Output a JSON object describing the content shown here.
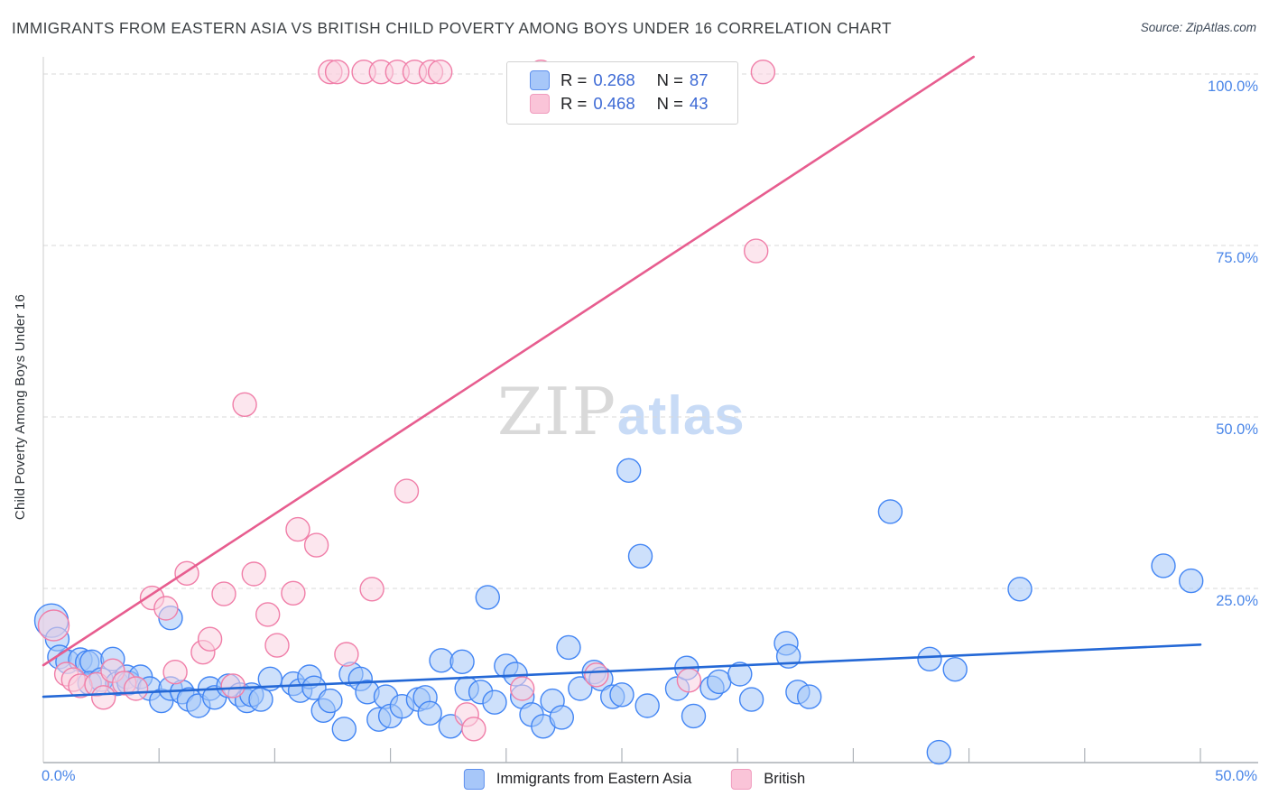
{
  "header": {
    "title": "IMMIGRANTS FROM EASTERN ASIA VS BRITISH CHILD POVERTY AMONG BOYS UNDER 16 CORRELATION CHART",
    "source": "Source: ZipAtlas.com"
  },
  "watermark": {
    "zip": "ZIP",
    "atlas": "atlas"
  },
  "axes": {
    "y_title": "Child Poverty Among Boys Under 16",
    "x_min_label": "0.0%",
    "x_max_label": "50.0%",
    "y_tick_labels": [
      "100.0%",
      "75.0%",
      "50.0%",
      "25.0%"
    ],
    "y_tick_values": [
      100,
      75,
      50,
      25
    ],
    "x_tick_values": [
      5,
      10,
      15,
      20,
      25,
      30,
      35,
      40,
      45,
      50
    ]
  },
  "legend": {
    "series": [
      {
        "r_prefix": "R =",
        "r_value": "0.268",
        "n_prefix": "N =",
        "n_value": "87"
      },
      {
        "r_prefix": "R =",
        "r_value": "0.468",
        "n_prefix": "N =",
        "n_value": "43"
      }
    ]
  },
  "bottom_legend": {
    "items": [
      {
        "label": "Immigrants from Eastern Asia"
      },
      {
        "label": "British"
      }
    ]
  },
  "colors": {
    "blue_stroke": "#4285f4",
    "blue_fill": "rgba(164,199,247,0.55)",
    "pink_stroke": "#f07ea8",
    "pink_fill": "rgba(250,209,224,0.55)",
    "blue_trend": "#2468d6",
    "pink_trend": "#e75d8f",
    "grid": "#d9d9d9",
    "x_axis": "#9aa0a6",
    "y_axis": "#cccccc",
    "tick": "#aeb3b9",
    "label_blue": "#4a86e8"
  },
  "chart_data": {
    "type": "scatter",
    "xlabel": "Immigrants from Eastern Asia (%)",
    "ylabel": "Child Poverty Among Boys Under 16 (%)",
    "xlim": [
      0,
      50
    ],
    "ylim": [
      0,
      105
    ],
    "grid": "horizontal-dashed",
    "legend_position": "top-center",
    "series": [
      {
        "name": "Immigrants from Eastern Asia",
        "R": 0.268,
        "N": 87,
        "points": [
          [
            0.35,
            20.3,
            18.5
          ],
          [
            0.6,
            17.6
          ],
          [
            0.7,
            15.0
          ],
          [
            1.05,
            14.3
          ],
          [
            1.6,
            14.6
          ],
          [
            1.9,
            14.2
          ],
          [
            2.1,
            14.3
          ],
          [
            2.0,
            11.2
          ],
          [
            2.5,
            11.7
          ],
          [
            3.0,
            14.7
          ],
          [
            3.2,
            11.1
          ],
          [
            3.6,
            12.1
          ],
          [
            3.7,
            11.2
          ],
          [
            4.2,
            12.1
          ],
          [
            4.6,
            10.4
          ],
          [
            5.1,
            8.6
          ],
          [
            5.5,
            10.4
          ],
          [
            5.5,
            20.7
          ],
          [
            6.0,
            9.9
          ],
          [
            6.3,
            8.8
          ],
          [
            6.7,
            7.9
          ],
          [
            7.2,
            10.4
          ],
          [
            7.4,
            9.1
          ],
          [
            8.0,
            10.8
          ],
          [
            8.5,
            9.5
          ],
          [
            8.8,
            8.6
          ],
          [
            9.0,
            9.5
          ],
          [
            9.4,
            8.8
          ],
          [
            9.8,
            11.8
          ],
          [
            10.8,
            11.1
          ],
          [
            11.1,
            10.1
          ],
          [
            11.5,
            12.1
          ],
          [
            11.7,
            10.5
          ],
          [
            12.1,
            7.2
          ],
          [
            12.4,
            8.6
          ],
          [
            13.0,
            4.5
          ],
          [
            13.3,
            12.5
          ],
          [
            13.7,
            11.8
          ],
          [
            14.0,
            9.9
          ],
          [
            14.5,
            5.9
          ],
          [
            14.8,
            9.2
          ],
          [
            15.0,
            6.4
          ],
          [
            15.5,
            7.8
          ],
          [
            16.2,
            8.8
          ],
          [
            16.5,
            9.1
          ],
          [
            16.7,
            6.8
          ],
          [
            17.2,
            14.5
          ],
          [
            17.6,
            4.9
          ],
          [
            18.1,
            14.3
          ],
          [
            18.3,
            10.4
          ],
          [
            18.9,
            9.9
          ],
          [
            19.2,
            23.7
          ],
          [
            19.5,
            8.4
          ],
          [
            20.0,
            13.7
          ],
          [
            20.4,
            12.5
          ],
          [
            20.7,
            9.2
          ],
          [
            21.1,
            6.6
          ],
          [
            21.6,
            4.9
          ],
          [
            22.0,
            8.6
          ],
          [
            22.4,
            6.2
          ],
          [
            22.7,
            16.4
          ],
          [
            23.2,
            10.4
          ],
          [
            23.8,
            12.8
          ],
          [
            24.1,
            11.8
          ],
          [
            24.6,
            9.2
          ],
          [
            25.0,
            9.5
          ],
          [
            25.3,
            42.2
          ],
          [
            25.8,
            29.7
          ],
          [
            26.1,
            7.9
          ],
          [
            27.4,
            10.4
          ],
          [
            27.8,
            13.4
          ],
          [
            28.1,
            6.4
          ],
          [
            28.9,
            10.5
          ],
          [
            29.2,
            11.4
          ],
          [
            30.1,
            12.5
          ],
          [
            30.6,
            8.8
          ],
          [
            32.1,
            17.0
          ],
          [
            32.2,
            15.1
          ],
          [
            32.6,
            9.9
          ],
          [
            33.1,
            9.2
          ],
          [
            36.6,
            36.2
          ],
          [
            38.3,
            14.7
          ],
          [
            38.7,
            1.1
          ],
          [
            39.4,
            13.2
          ],
          [
            42.2,
            24.9
          ],
          [
            48.4,
            28.3
          ],
          [
            49.6,
            26.1
          ]
        ]
      },
      {
        "name": "British",
        "R": 0.468,
        "N": 43,
        "points": [
          [
            0.45,
            19.6,
            17
          ],
          [
            1.0,
            12.5
          ],
          [
            1.3,
            11.7
          ],
          [
            1.6,
            10.8
          ],
          [
            2.3,
            11.0
          ],
          [
            2.6,
            9.1
          ],
          [
            3.0,
            13.0
          ],
          [
            3.5,
            11.2
          ],
          [
            4.0,
            10.4
          ],
          [
            4.7,
            23.6
          ],
          [
            5.3,
            22.1
          ],
          [
            5.7,
            12.8
          ],
          [
            6.2,
            27.2
          ],
          [
            6.9,
            15.7
          ],
          [
            7.2,
            17.6
          ],
          [
            7.8,
            24.2
          ],
          [
            8.2,
            10.8
          ],
          [
            8.7,
            51.8
          ],
          [
            9.1,
            27.1
          ],
          [
            9.7,
            21.2
          ],
          [
            10.1,
            16.7
          ],
          [
            10.8,
            24.3
          ],
          [
            11.0,
            33.6
          ],
          [
            11.8,
            31.3
          ],
          [
            12.4,
            100.3
          ],
          [
            12.7,
            100.3
          ],
          [
            13.1,
            15.4
          ],
          [
            13.85,
            100.3
          ],
          [
            14.2,
            24.9
          ],
          [
            14.6,
            100.3
          ],
          [
            15.3,
            100.3
          ],
          [
            15.7,
            39.2
          ],
          [
            16.05,
            100.3
          ],
          [
            16.75,
            100.3
          ],
          [
            17.15,
            100.3
          ],
          [
            18.3,
            6.6
          ],
          [
            18.6,
            4.5
          ],
          [
            20.7,
            10.4
          ],
          [
            21.5,
            100.3
          ],
          [
            23.9,
            12.4
          ],
          [
            27.9,
            11.6
          ],
          [
            30.8,
            74.2
          ],
          [
            31.1,
            100.3
          ]
        ]
      }
    ],
    "trend_lines": [
      {
        "series": "Immigrants from Eastern Asia",
        "x1": 0,
        "y1": 9.2,
        "x2": 50,
        "y2": 16.8
      },
      {
        "series": "British",
        "x1": 0,
        "y1": 13.8,
        "x2": 40.2,
        "y2": 102.5
      }
    ]
  }
}
